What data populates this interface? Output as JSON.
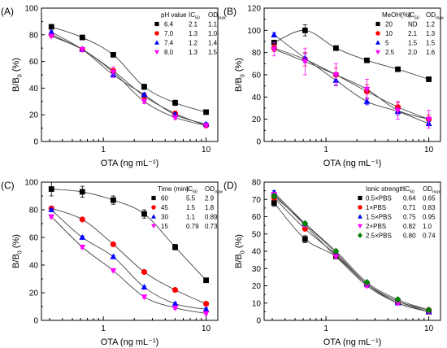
{
  "chart_data": [
    {
      "panel": "(A)",
      "type": "scatter",
      "xlabel": "OTA (ng mL⁻¹)",
      "ylabel_main": "B/B",
      "ylabel_sub": "0",
      "ylabel_tail": " (%)",
      "xscale": "log",
      "xlim": [
        0.25,
        13
      ],
      "ylim": [
        0,
        100
      ],
      "yticks": [
        0,
        20,
        40,
        60,
        80,
        100
      ],
      "xticks": [
        1,
        10
      ],
      "x": [
        0.3125,
        0.625,
        1.25,
        2.5,
        5,
        10
      ],
      "legend": {
        "headers": [
          {
            "main": "pH value",
            "sub": ""
          },
          {
            "main": "IC",
            "sub": "50"
          },
          {
            "main": "OD",
            "sub": "max"
          }
        ],
        "rows": [
          [
            "6.4",
            "2.1",
            "1.1"
          ],
          [
            "7.0",
            "1.3",
            "1.0"
          ],
          [
            "7.4",
            "1.2",
            "1.4"
          ],
          [
            "8.0",
            "1.3",
            "1.5"
          ]
        ]
      },
      "series": [
        {
          "values": [
            86,
            78,
            65,
            41,
            29,
            22
          ],
          "err": [
            1,
            1.5,
            1.5,
            2,
            2,
            1
          ],
          "marker": "square",
          "color": "#000000"
        },
        {
          "values": [
            80,
            69,
            53,
            34,
            21,
            12
          ],
          "err": [
            1,
            1.5,
            1.5,
            2,
            1.5,
            1
          ],
          "marker": "circle",
          "color": "#ff0000"
        },
        {
          "values": [
            82,
            69,
            50,
            35,
            20,
            13
          ],
          "err": [
            1,
            1.5,
            1.5,
            1.5,
            1.5,
            1
          ],
          "marker": "triangle-up",
          "color": "#0000ff"
        },
        {
          "values": [
            79,
            69,
            52,
            30,
            18,
            12
          ],
          "err": [
            1,
            1.5,
            4,
            1.5,
            1.5,
            1
          ],
          "marker": "triangle-down",
          "color": "#ff00ff"
        }
      ]
    },
    {
      "panel": "(B)",
      "type": "scatter",
      "xlabel": "OTA (ng mL⁻¹)",
      "ylabel_main": "B/B",
      "ylabel_sub": "0",
      "ylabel_tail": " (%)",
      "xscale": "log",
      "xlim": [
        0.25,
        13
      ],
      "ylim": [
        0,
        120
      ],
      "yticks": [
        0,
        20,
        40,
        60,
        80,
        100,
        120
      ],
      "xticks": [
        1,
        10
      ],
      "x": [
        0.3125,
        0.625,
        1.25,
        2.5,
        5,
        10
      ],
      "legend": {
        "headers": [
          {
            "main": "MeOH(%)",
            "sub": ""
          },
          {
            "main": "IC",
            "sub": "50"
          },
          {
            "main": "OD",
            "sub": "max"
          }
        ],
        "rows": [
          [
            "20",
            "ND",
            "1.2"
          ],
          [
            "10",
            "2.1",
            "1.3"
          ],
          [
            "5",
            "1.5",
            "1.5"
          ],
          [
            "2.5",
            "2.0",
            "1.6"
          ]
        ]
      },
      "series": [
        {
          "values": [
            89,
            100,
            84,
            73,
            65,
            56
          ],
          "err": [
            2,
            5,
            2,
            2,
            2,
            2
          ],
          "marker": "square",
          "color": "#000000"
        },
        {
          "values": [
            84,
            74,
            60,
            45,
            31,
            20
          ],
          "err": [
            3,
            6,
            6,
            6,
            4,
            4
          ],
          "marker": "circle",
          "color": "#ff0000"
        },
        {
          "values": [
            96,
            75,
            55,
            36,
            27,
            16
          ],
          "err": [
            2,
            4,
            4,
            3,
            3,
            2
          ],
          "marker": "triangle-up",
          "color": "#0000ff"
        },
        {
          "values": [
            83,
            72,
            60,
            47,
            28,
            20
          ],
          "err": [
            6,
            12,
            10,
            9,
            8,
            8
          ],
          "marker": "triangle-down",
          "color": "#ff00ff"
        }
      ]
    },
    {
      "panel": "(C)",
      "type": "scatter",
      "xlabel": "OTA (ng mL⁻¹)",
      "ylabel_main": "B/B",
      "ylabel_sub": "0",
      "ylabel_tail": " (%)",
      "xscale": "log",
      "xlim": [
        0.25,
        13
      ],
      "ylim": [
        0,
        100
      ],
      "yticks": [
        0,
        20,
        40,
        60,
        80,
        100
      ],
      "xticks": [
        1,
        10
      ],
      "x": [
        0.3125,
        0.625,
        1.25,
        2.5,
        5,
        10
      ],
      "legend": {
        "headers": [
          {
            "main": "Time (min)",
            "sub": ""
          },
          {
            "main": "IC",
            "sub": "50"
          },
          {
            "main": "OD",
            "sub": "max"
          }
        ],
        "rows": [
          [
            "60",
            "5.5",
            "2.9"
          ],
          [
            "45",
            "1.5",
            "1.8"
          ],
          [
            "30",
            "1.1",
            "0.89"
          ],
          [
            "15",
            "0.79",
            "0.73"
          ]
        ]
      },
      "series": [
        {
          "values": [
            95,
            93,
            87,
            77,
            53,
            29
          ],
          "err": [
            5,
            4,
            3,
            3,
            2,
            1
          ],
          "marker": "square",
          "color": "#000000"
        },
        {
          "values": [
            81,
            73,
            55,
            35,
            22,
            12
          ],
          "err": [
            1,
            1,
            1,
            1,
            1,
            1
          ],
          "marker": "circle",
          "color": "#ff0000"
        },
        {
          "values": [
            80,
            60,
            46,
            24,
            12,
            8
          ],
          "err": [
            1,
            1,
            1,
            1,
            1,
            1
          ],
          "marker": "triangle-up",
          "color": "#0000ff"
        },
        {
          "values": [
            75,
            53,
            36,
            17,
            9,
            5
          ],
          "err": [
            1,
            1,
            1,
            1,
            1,
            1
          ],
          "marker": "triangle-down",
          "color": "#ff00ff"
        }
      ]
    },
    {
      "panel": "(D)",
      "type": "scatter",
      "xlabel": "OTA (ng mL⁻¹)",
      "ylabel_main": "B/B",
      "ylabel_sub": "0",
      "ylabel_tail": " (%)",
      "xscale": "log",
      "xlim": [
        0.25,
        13
      ],
      "ylim": [
        0,
        80
      ],
      "yticks": [
        0,
        10,
        20,
        30,
        40,
        50,
        60,
        70,
        80
      ],
      "xticks": [
        1,
        10
      ],
      "x": [
        0.3125,
        0.625,
        1.25,
        2.5,
        5,
        10
      ],
      "legend": {
        "headers": [
          {
            "main": "Ionic strength",
            "sub": ""
          },
          {
            "main": "IC",
            "sub": "50"
          },
          {
            "main": "OD",
            "sub": "max"
          }
        ],
        "rows": [
          [
            "0.5×PBS",
            "0.64",
            "0.65"
          ],
          [
            "1×PBS",
            "0.71",
            "0.83"
          ],
          [
            "1.5×PBS",
            "0.75",
            "0.95"
          ],
          [
            "2×PBS",
            "0.82",
            "1.0"
          ],
          [
            "2.5×PBS",
            "0.80",
            "0.74"
          ]
        ]
      },
      "series": [
        {
          "values": [
            68,
            47,
            37,
            21,
            11,
            5
          ],
          "err": [
            2,
            2,
            1,
            1,
            1,
            0.8
          ],
          "marker": "square",
          "color": "#000000"
        },
        {
          "values": [
            71,
            53,
            38,
            21,
            11,
            6
          ],
          "err": [
            1,
            1,
            1,
            1,
            1,
            0.8
          ],
          "marker": "circle",
          "color": "#ff0000"
        },
        {
          "values": [
            74,
            56,
            39,
            21,
            10,
            5
          ],
          "err": [
            1,
            1,
            1,
            1,
            1,
            0.8
          ],
          "marker": "triangle-up",
          "color": "#0000ff"
        },
        {
          "values": [
            73,
            55,
            37,
            20,
            10,
            5
          ],
          "err": [
            1,
            1,
            1,
            1,
            1,
            0.8
          ],
          "marker": "triangle-down",
          "color": "#ff00ff"
        },
        {
          "values": [
            72,
            56,
            40,
            22,
            12,
            6
          ],
          "err": [
            1,
            1,
            1,
            1,
            1,
            0.8
          ],
          "marker": "diamond",
          "color": "#008000"
        }
      ]
    }
  ]
}
